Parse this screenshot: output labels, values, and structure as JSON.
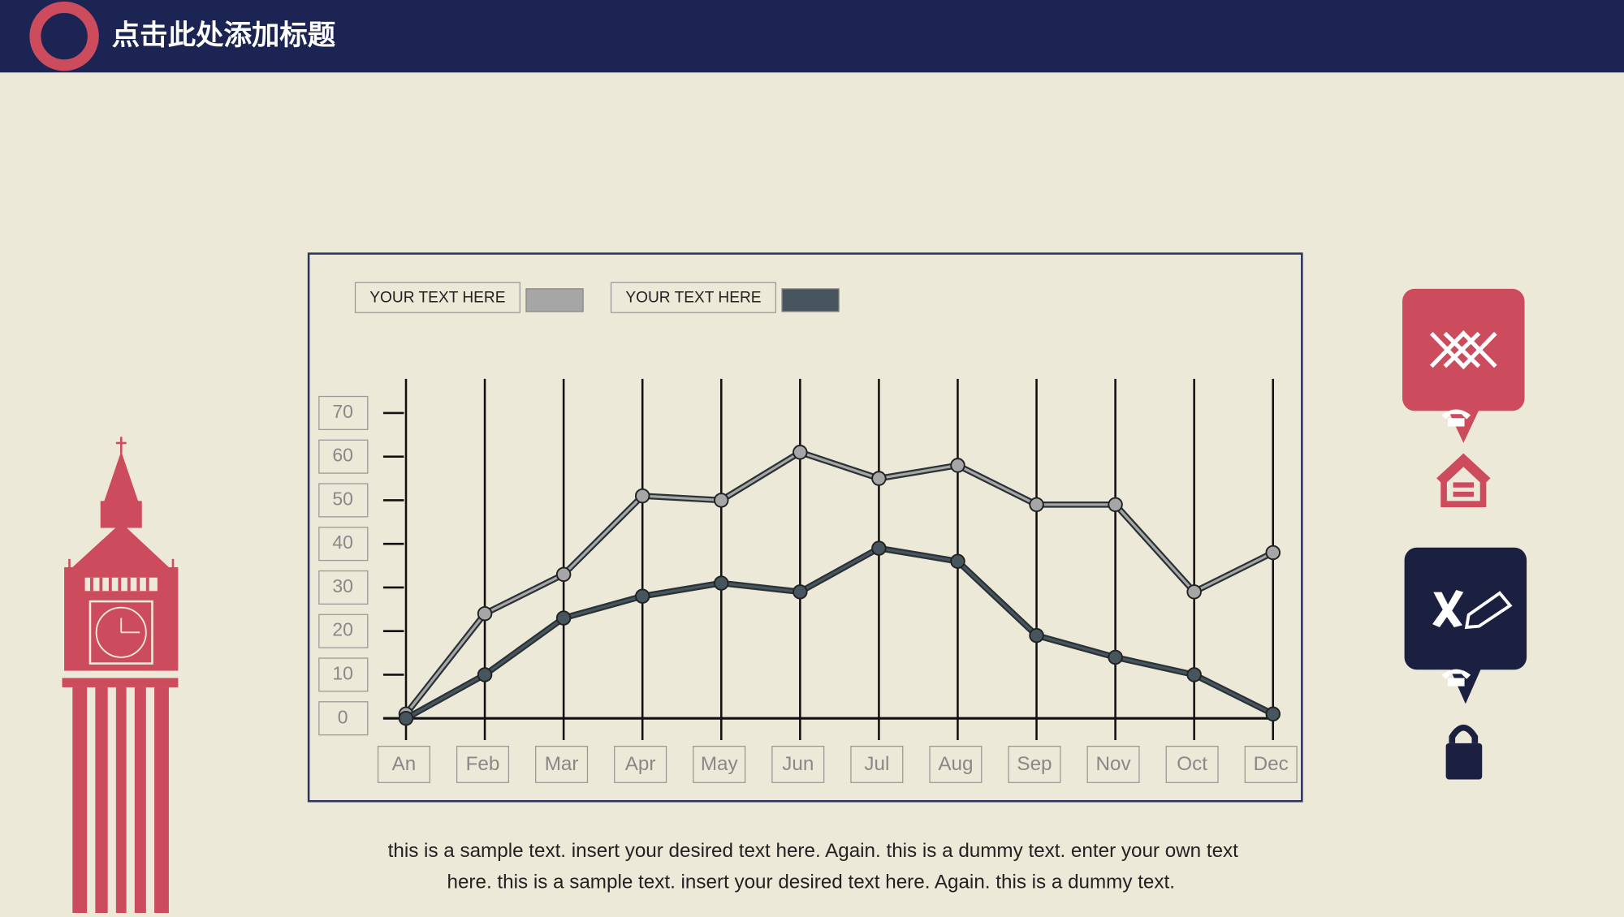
{
  "header": {
    "title": "点击此处添加标题"
  },
  "chart_data": {
    "type": "line",
    "categories": [
      "An",
      "Feb",
      "Mar",
      "Apr",
      "May",
      "Jun",
      "Jul",
      "Aug",
      "Sep",
      "Nov",
      "Oct",
      "Dec"
    ],
    "series": [
      {
        "name": "YOUR TEXT HERE",
        "color": "#a6a6a6",
        "values": [
          1,
          24,
          33,
          51,
          50,
          61,
          55,
          58,
          49,
          49,
          29,
          38
        ]
      },
      {
        "name": "YOUR TEXT HERE",
        "color": "#46555e",
        "values": [
          0,
          10,
          23,
          28,
          31,
          29,
          39,
          36,
          19,
          14,
          10,
          1
        ]
      }
    ],
    "ylim": [
      0,
      70
    ],
    "yticks": [
      0,
      10,
      20,
      30,
      40,
      50,
      60,
      70
    ],
    "grid": true
  },
  "body_text": [
    "this is a sample text. insert your desired text here. Again. this is a dummy text. enter your own text",
    "here. this is a sample text. insert your desired text here. Again. this is a dummy text."
  ]
}
